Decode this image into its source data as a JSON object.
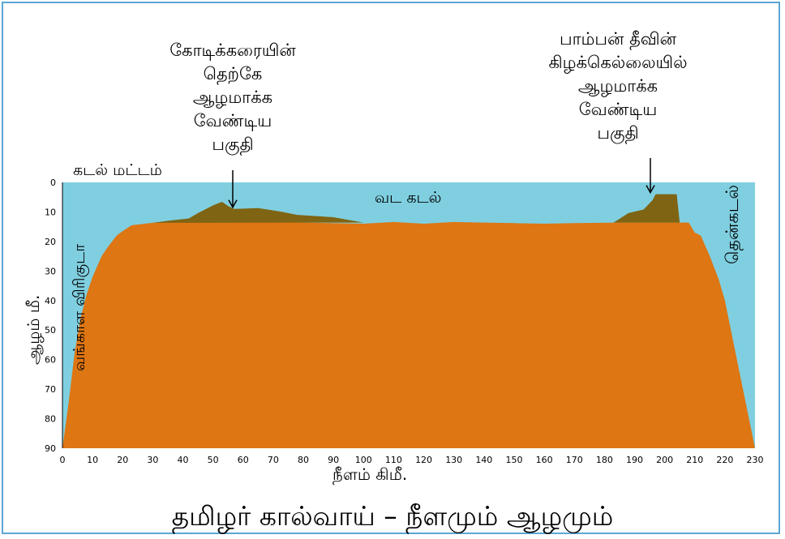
{
  "title": "தமிழர் கால்வாய் – நீளமும் ஆழமும்",
  "xlabel": "நீளம் கிமீ.",
  "ylabel": "ஆழம் மீ.",
  "labels": {
    "sea_level": "கடல் மட்டம்",
    "north_sea": "வட கடல்",
    "bay_of_bengal": "வங்காள விரிகுடா",
    "south_sea": "தென்கடல்"
  },
  "annotations": [
    {
      "lines": [
        "கோடிக்கரையின்",
        "தெற்கே",
        "ஆழமாக்க",
        "வேண்டிய",
        "பகுதி"
      ],
      "target_km": 57,
      "target_depth": 9
    },
    {
      "lines": [
        "பாம்பன் தீவின்",
        "கிழக்கெல்லையில்",
        "ஆழமாக்க",
        "வேண்டிய",
        "பகுதி"
      ],
      "target_km": 196,
      "target_depth": 4
    }
  ],
  "colors": {
    "water": "#7fcfe0",
    "seabed": "#dd7613",
    "dredge": "#7f6413",
    "frame": "#5ba6d3"
  },
  "chart_data": {
    "type": "area",
    "xlim": [
      0,
      230
    ],
    "ylim": [
      0,
      90
    ],
    "y_inverted": true,
    "x_ticks": [
      "0",
      "10",
      "20",
      "30",
      "40",
      "50",
      "60",
      "70",
      "80",
      "90",
      "100",
      "110",
      "120",
      "130",
      "140",
      "150",
      "160",
      "170",
      "180",
      "190",
      "200",
      "210",
      "220",
      "230"
    ],
    "y_ticks": [
      "0",
      "10",
      "20",
      "30",
      "40",
      "50",
      "60",
      "70",
      "80",
      "90"
    ],
    "seabed_profile": [
      [
        0,
        90
      ],
      [
        2,
        75
      ],
      [
        4,
        58
      ],
      [
        6,
        46
      ],
      [
        8,
        38
      ],
      [
        10,
        32
      ],
      [
        13,
        25
      ],
      [
        15,
        22
      ],
      [
        18,
        18
      ],
      [
        20,
        16.5
      ],
      [
        23,
        14.5
      ],
      [
        30,
        13.7
      ],
      [
        40,
        13.4
      ],
      [
        60,
        13.4
      ],
      [
        80,
        13.6
      ],
      [
        100,
        14
      ],
      [
        110,
        13.4
      ],
      [
        120,
        14
      ],
      [
        130,
        13.4
      ],
      [
        140,
        13.6
      ],
      [
        150,
        13.8
      ],
      [
        160,
        14
      ],
      [
        170,
        13.8
      ],
      [
        185,
        13.6
      ],
      [
        195,
        13.6
      ],
      [
        200,
        13.6
      ],
      [
        208,
        13.6
      ],
      [
        210,
        17
      ],
      [
        212,
        18
      ],
      [
        215,
        25
      ],
      [
        218,
        33
      ],
      [
        220,
        40
      ],
      [
        223,
        55
      ],
      [
        226,
        70
      ],
      [
        228,
        80
      ],
      [
        230,
        90
      ]
    ],
    "dredge_zones": [
      {
        "top": [
          [
            30,
            13.7
          ],
          [
            35,
            13
          ],
          [
            42,
            12.2
          ],
          [
            45,
            10.4
          ],
          [
            50,
            7.8
          ],
          [
            53,
            6.6
          ],
          [
            55,
            8
          ],
          [
            57,
            9
          ],
          [
            65,
            8.7
          ],
          [
            72,
            9.8
          ],
          [
            78,
            11
          ],
          [
            90,
            11.8
          ],
          [
            100,
            13.6
          ]
        ]
      },
      {
        "top": [
          [
            183,
            13.6
          ],
          [
            188,
            10.4
          ],
          [
            193,
            9.2
          ],
          [
            196,
            6
          ],
          [
            197,
            4
          ],
          [
            200,
            4
          ],
          [
            204,
            4
          ],
          [
            205,
            13.6
          ]
        ]
      }
    ]
  }
}
